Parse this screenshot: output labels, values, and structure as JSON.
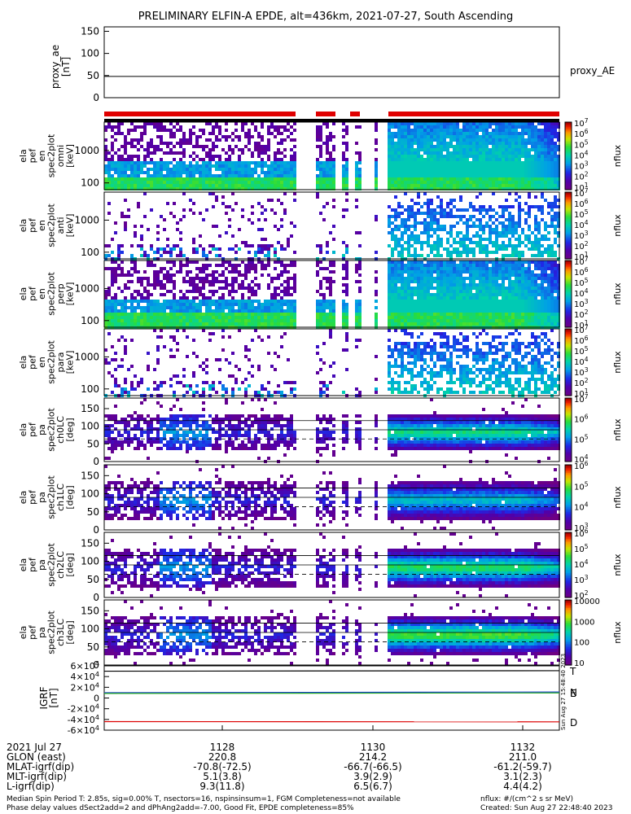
{
  "title": "PRELIMINARY ELFIN-A EPDE, alt=436km, 2021-07-27, South Ascending",
  "proxy_panel": {
    "ylabel": "proxy_ae\n[nT]",
    "legend": "proxy_AE",
    "yticks": [
      "150",
      "100",
      "50",
      "0"
    ],
    "ylim": [
      0,
      160
    ],
    "line_value": 48
  },
  "chart_data": [
    {
      "type": "heatmap",
      "name": "ela pef en spec2plot omni",
      "ylabel": [
        "ela",
        "pef",
        "en",
        "spec2plot",
        "omni",
        "[keV]"
      ],
      "yticks": [
        "1000",
        "100"
      ],
      "colorbar": {
        "label": "nflux",
        "ticks": [
          "10^7",
          "10^6",
          "10^5",
          "10^4",
          "10^3",
          "10^2",
          "10^1"
        ]
      }
    },
    {
      "type": "heatmap",
      "name": "ela pef en spec2plot anti",
      "ylabel": [
        "ela",
        "pef",
        "en",
        "spec2plot",
        "anti",
        "[keV]"
      ],
      "yticks": [
        "1000",
        "100"
      ],
      "colorbar": {
        "label": "nflux",
        "ticks": [
          "10^7",
          "10^6",
          "10^5",
          "10^4",
          "10^3",
          "10^2",
          "10^1"
        ]
      }
    },
    {
      "type": "heatmap",
      "name": "ela pef en spec2plot perp",
      "ylabel": [
        "ela",
        "pef",
        "en",
        "spec2plot",
        "perp",
        "[keV]"
      ],
      "yticks": [
        "1000",
        "100"
      ],
      "colorbar": {
        "label": "nflux",
        "ticks": [
          "10^7",
          "10^6",
          "10^5",
          "10^4",
          "10^3",
          "10^2",
          "10^1"
        ]
      }
    },
    {
      "type": "heatmap",
      "name": "ela pef en spec2plot para",
      "ylabel": [
        "ela",
        "pef",
        "en",
        "spec2plot",
        "para",
        "[keV]"
      ],
      "yticks": [
        "1000",
        "100"
      ],
      "colorbar": {
        "label": "nflux",
        "ticks": [
          "10^7",
          "10^6",
          "10^5",
          "10^4",
          "10^3",
          "10^2",
          "10^1"
        ]
      }
    },
    {
      "type": "heatmap",
      "name": "ela pef pa spec2plot ch0LC",
      "ylabel": [
        "ela",
        "pef",
        "pa",
        "spec2plot",
        "ch0LC",
        "[deg]"
      ],
      "yticks": [
        "150",
        "100",
        "50",
        "0"
      ],
      "ylim": [
        0,
        180
      ],
      "colorbar": {
        "label": "nflux",
        "ticks": [
          "10^7",
          "10^6",
          "10^5",
          "10^4"
        ]
      }
    },
    {
      "type": "heatmap",
      "name": "ela pef pa spec2plot ch1LC",
      "ylabel": [
        "ela",
        "pef",
        "pa",
        "spec2plot",
        "ch1LC",
        "[deg]"
      ],
      "yticks": [
        "150",
        "100",
        "50",
        "0"
      ],
      "ylim": [
        0,
        180
      ],
      "colorbar": {
        "label": "nflux",
        "ticks": [
          "10^6",
          "10^5",
          "10^4",
          "10^3"
        ]
      }
    },
    {
      "type": "heatmap",
      "name": "ela pef pa spec2plot ch2LC",
      "ylabel": [
        "ela",
        "pef",
        "pa",
        "spec2plot",
        "ch2LC",
        "[deg]"
      ],
      "yticks": [
        "150",
        "100",
        "50",
        "0"
      ],
      "ylim": [
        0,
        180
      ],
      "colorbar": {
        "label": "nflux",
        "ticks": [
          "10^6",
          "10^5",
          "10^4",
          "10^3",
          "10^2"
        ]
      }
    },
    {
      "type": "heatmap",
      "name": "ela pef pa spec2plot ch3LC",
      "ylabel": [
        "ela",
        "pef",
        "pa",
        "spec2plot",
        "ch3LC",
        "[deg]"
      ],
      "yticks": [
        "150",
        "100",
        "50",
        "0"
      ],
      "ylim": [
        0,
        180
      ],
      "colorbar": {
        "label": "nflux",
        "ticks": [
          "10000",
          "1000",
          "100",
          "10"
        ]
      }
    },
    {
      "type": "line",
      "name": "IGRF",
      "ylabel": [
        "IGRF",
        "[nT]"
      ],
      "yticks": [
        "6×10^4",
        "4×10^4",
        "2×10^4",
        "0",
        "-2×10^4",
        "-4×10^4",
        "-6×10^4"
      ],
      "ylim": [
        -60000,
        60000
      ],
      "series": [
        {
          "name": "T",
          "color": "#000000",
          "start": 50000,
          "end": 51000
        },
        {
          "name": "N",
          "color": "#1f3fd0",
          "start": 10000,
          "end": 11200
        },
        {
          "name": "E",
          "color": "#22aa22",
          "start": 8500,
          "end": 9500
        },
        {
          "name": "D",
          "color": "#dd0000",
          "start": -44000,
          "end": -44500
        }
      ],
      "side_note": "Sun Aug 27 15:48:40 2023"
    }
  ],
  "time_axis": {
    "ticks": [
      "1128",
      "1130",
      "1132"
    ],
    "rows": [
      {
        "label": "2021 Jul 27",
        "values": [
          "",
          "",
          ""
        ]
      },
      {
        "label": "GLON (east)",
        "values": [
          "220.8",
          "214.2",
          "211.0"
        ]
      },
      {
        "label": "MLAT-igrf(dip)",
        "values": [
          "-70.8(-72.5)",
          "-66.7(-66.5)",
          "-61.2(-59.7)"
        ]
      },
      {
        "label": "MLT-igrf(dip)",
        "values": [
          "5.1(3.8)",
          "3.9(2.9)",
          "3.1(2.3)"
        ]
      },
      {
        "label": "L-igrf(dip)",
        "values": [
          "9.3(11.8)",
          "6.5(6.7)",
          "4.4(4.2)"
        ]
      }
    ]
  },
  "footer": {
    "left1": "Median Spin Period T: 2.85s, sig=0.00% T, nsectors=16, nspinsinsum=1, FGM Completeness=not available",
    "left2": "Phase delay values dSect2add=2 and dPhAng2add=-7.00, Good Fit, EPDE completeness=85%",
    "right1": "nflux: #/(cm^2 s sr MeV)",
    "right2": "Created: Sun Aug 27 22:48:40 2023"
  }
}
